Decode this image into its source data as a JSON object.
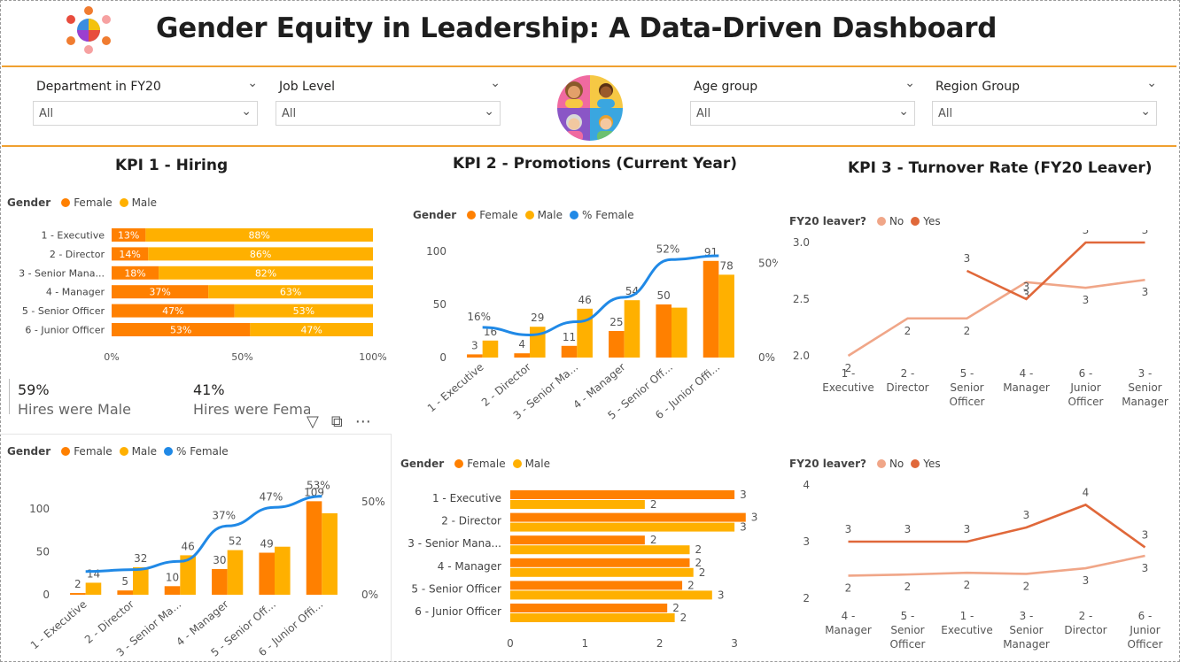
{
  "header": {
    "title": "Gender Equity in Leadership: A Data-Driven Dashboard"
  },
  "filters": [
    {
      "label": "Department in FY20",
      "value": "All"
    },
    {
      "label": "Job Level",
      "value": "All"
    },
    {
      "label": "Age group",
      "value": "All"
    },
    {
      "label": "Region Group",
      "value": "All"
    }
  ],
  "colors": {
    "female": "#ff8000",
    "male": "#ffb000",
    "pct_female": "#2089e6",
    "no": "#f0a688",
    "yes": "#e0683a",
    "accent": "#f0a030"
  },
  "kpi1": {
    "title": "KPI 1 - Hiring"
  },
  "kpi2": {
    "title": "KPI 2 - Promotions (Current Year)"
  },
  "kpi3": {
    "title": "KPI 3 - Turnover Rate (FY20 Leaver)"
  },
  "legends": {
    "gender": "Gender",
    "female": "Female",
    "male": "Male",
    "pct_female": "% Female",
    "leaver": "FY20 leaver?",
    "no": "No",
    "yes": "Yes"
  },
  "cards": [
    {
      "value": "59%",
      "label": "Hires were Male"
    },
    {
      "value": "41%",
      "label": "Hires were Female"
    }
  ],
  "chart_data": [
    {
      "id": "hiring_stacked",
      "type": "bar",
      "orientation": "horizontal",
      "stacked": "100%",
      "categories": [
        "1 - Executive",
        "2 - Director",
        "3 - Senior Mana...",
        "4 - Manager",
        "5 - Senior Officer",
        "6 - Junior Officer"
      ],
      "series": [
        {
          "name": "Female",
          "values": [
            13,
            14,
            18,
            37,
            47,
            53
          ],
          "labels": [
            "13%",
            "14%",
            "18%",
            "37%",
            "47%",
            "53%"
          ]
        },
        {
          "name": "Male",
          "values": [
            88,
            86,
            82,
            63,
            53,
            47
          ],
          "labels": [
            "88%",
            "86%",
            "82%",
            "63%",
            "53%",
            "47%"
          ]
        }
      ],
      "xticks": [
        "0%",
        "50%",
        "100%"
      ],
      "xlim": [
        0,
        100
      ]
    },
    {
      "id": "hiring_combo",
      "type": "bar",
      "categories": [
        "1 - Executive",
        "2 - Director",
        "3 - Senior Ma...",
        "4 - Manager",
        "5 - Senior Off...",
        "6 - Junior Offi..."
      ],
      "series": [
        {
          "name": "Female",
          "values": [
            2,
            5,
            10,
            30,
            49,
            109
          ],
          "labels": [
            "2",
            "5",
            "10",
            "30",
            "49",
            "109"
          ]
        },
        {
          "name": "Male",
          "values": [
            14,
            32,
            46,
            52,
            56,
            95
          ],
          "labels": [
            "14",
            "32",
            "46",
            "52",
            "",
            ""
          ]
        },
        {
          "name": "% Female",
          "type": "line",
          "values": [
            12.5,
            13.5,
            18,
            37,
            47,
            53
          ],
          "labels": [
            "",
            "",
            "",
            "37%",
            "47%",
            "53%"
          ]
        }
      ],
      "ylim": [
        0,
        130
      ],
      "yticks": [
        "0",
        "50",
        "100"
      ],
      "y2ticks": [
        "0%",
        "50%"
      ],
      "y2lim": [
        0,
        60
      ]
    },
    {
      "id": "promotions_combo",
      "type": "bar",
      "categories": [
        "1 - Executive",
        "2 - Director",
        "3 - Senior Ma...",
        "4 - Manager",
        "5 - Senior Off...",
        "6 - Junior Offi..."
      ],
      "series": [
        {
          "name": "Female",
          "values": [
            3,
            4,
            11,
            25,
            50,
            91
          ],
          "labels": [
            "3",
            "4",
            "11",
            "25",
            "50",
            "91"
          ]
        },
        {
          "name": "Male",
          "values": [
            16,
            29,
            46,
            54,
            47,
            78
          ],
          "labels": [
            "16",
            "29",
            "46",
            "54",
            "",
            "78"
          ]
        },
        {
          "name": "% Female",
          "type": "line",
          "values": [
            16,
            12,
            19,
            32,
            52,
            54
          ],
          "labels": [
            "16%",
            "",
            "",
            "",
            "52%",
            ""
          ]
        }
      ],
      "ylim": [
        0,
        110
      ],
      "yticks": [
        "0",
        "50",
        "100"
      ],
      "y2ticks": [
        "0%",
        "50%"
      ],
      "y2lim": [
        0,
        62
      ]
    },
    {
      "id": "promotions_horizontal",
      "type": "bar",
      "orientation": "horizontal",
      "categories": [
        "1 - Executive",
        "2 - Director",
        "3 - Senior Mana...",
        "4 - Manager",
        "5 - Senior Officer",
        "6 - Junior Officer"
      ],
      "series": [
        {
          "name": "Female",
          "values": [
            3.0,
            3.15,
            1.8,
            2.4,
            2.3,
            2.1
          ],
          "labels": [
            "3",
            "3",
            "2",
            "2",
            "2",
            "2"
          ]
        },
        {
          "name": "Male",
          "values": [
            1.8,
            3.0,
            2.4,
            2.45,
            2.7,
            2.2
          ],
          "labels": [
            "2",
            "3",
            "2",
            "2",
            "3",
            "2"
          ]
        }
      ],
      "xticks": [
        "0",
        "1",
        "2",
        "3"
      ],
      "xlim": [
        0,
        3.2
      ]
    },
    {
      "id": "turnover_line_1",
      "type": "line",
      "categories": [
        "1 - Executive",
        "2 - Director",
        "5 - Senior Officer",
        "4 - Manager",
        "6 - Junior Officer",
        "3 - Senior Manager"
      ],
      "series": [
        {
          "name": "No",
          "values": [
            2.0,
            2.33,
            2.33,
            2.65,
            2.6,
            2.67
          ],
          "labels": [
            "2",
            "2",
            "2",
            "3",
            "3",
            "3"
          ]
        },
        {
          "name": "Yes",
          "values": [
            null,
            null,
            2.75,
            2.5,
            3.0,
            3.0
          ],
          "labels": [
            "",
            "",
            "3",
            "3",
            "3",
            "3"
          ]
        }
      ],
      "ylim": [
        2.0,
        3.0
      ],
      "yticks": [
        "2.0",
        "2.5",
        "3.0"
      ]
    },
    {
      "id": "turnover_line_2",
      "type": "line",
      "categories": [
        "4 - Manager",
        "5 - Senior Officer",
        "1 - Executive",
        "3 - Senior Manager",
        "2 - Director",
        "6 - Junior Officer"
      ],
      "series": [
        {
          "name": "No",
          "values": [
            2.4,
            2.42,
            2.45,
            2.43,
            2.53,
            2.75
          ],
          "labels": [
            "2",
            "2",
            "2",
            "2",
            "3",
            "3"
          ]
        },
        {
          "name": "Yes",
          "values": [
            3.0,
            3.0,
            3.0,
            3.25,
            3.65,
            2.9
          ],
          "labels": [
            "3",
            "3",
            "3",
            "3",
            "4",
            "3"
          ]
        }
      ],
      "ylim": [
        2,
        4
      ],
      "yticks": [
        "2",
        "3",
        "4"
      ]
    }
  ]
}
